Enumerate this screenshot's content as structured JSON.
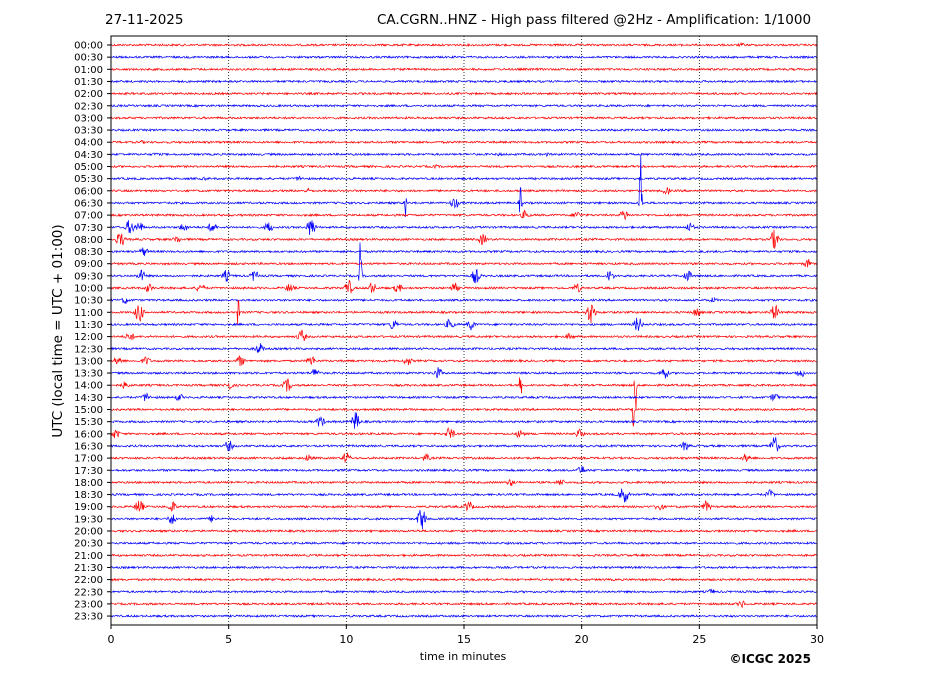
{
  "header": {
    "date": "27-11-2025",
    "station_title": "CA.CGRN..HNZ - High pass filtered @2Hz - Amplification: 1/1000"
  },
  "copyright": "©ICGC 2025",
  "colors": {
    "red": "#ff0000",
    "blue": "#0000ff",
    "grid": "#000000"
  },
  "chart_data": {
    "type": "line",
    "title": "CA.CGRN..HNZ - High pass filtered @2Hz - Amplification: 1/1000",
    "xlabel": "time in minutes",
    "ylabel": "UTC (local time = UTC + 01:00)",
    "xlim": [
      0,
      30
    ],
    "xticks": [
      0,
      5,
      10,
      15,
      20,
      25,
      30
    ],
    "vertical_gridlines_at": [
      5,
      10,
      15,
      20,
      25
    ],
    "grid_style": "dotted",
    "trace_colors_alternate": [
      "red",
      "blue"
    ],
    "rows": [
      "00:00",
      "00:30",
      "01:00",
      "01:30",
      "02:00",
      "02:30",
      "03:00",
      "03:30",
      "04:00",
      "04:30",
      "05:00",
      "05:30",
      "06:00",
      "06:30",
      "07:00",
      "07:30",
      "08:00",
      "08:30",
      "09:00",
      "09:30",
      "10:00",
      "10:30",
      "11:00",
      "11:30",
      "12:00",
      "12:30",
      "13:00",
      "13:30",
      "14:00",
      "14:30",
      "15:00",
      "15:30",
      "16:00",
      "16:30",
      "17:00",
      "17:30",
      "18:00",
      "18:30",
      "19:00",
      "19:30",
      "20:00",
      "20:30",
      "21:00",
      "21:30",
      "22:00",
      "22:30",
      "23:00",
      "23:30"
    ],
    "events": [
      {
        "row": 0,
        "t": 26.8,
        "amp": 2
      },
      {
        "row": 8,
        "t": 1.3,
        "amp": 2
      },
      {
        "row": 9,
        "t": 1.9,
        "amp": 2
      },
      {
        "row": 9,
        "t": 16.5,
        "amp": 2
      },
      {
        "row": 9,
        "t": 18.5,
        "amp": 2
      },
      {
        "row": 10,
        "t": 13.8,
        "amp": 2
      },
      {
        "row": 11,
        "t": 4.0,
        "amp": 2
      },
      {
        "row": 11,
        "t": 8.0,
        "amp": 3
      },
      {
        "row": 12,
        "t": 8.4,
        "amp": 3
      },
      {
        "row": 12,
        "t": 23.6,
        "amp": 4
      },
      {
        "row": 13,
        "t": 12.5,
        "amp": 20
      },
      {
        "row": 13,
        "t": 14.6,
        "amp": 6
      },
      {
        "row": 13,
        "t": 17.4,
        "amp": 18
      },
      {
        "row": 13,
        "t": 22.5,
        "amp": 70
      },
      {
        "row": 14,
        "t": 17.6,
        "amp": 5
      },
      {
        "row": 14,
        "t": 19.8,
        "amp": 4
      },
      {
        "row": 14,
        "t": 21.8,
        "amp": 6
      },
      {
        "row": 15,
        "t": 0.8,
        "amp": 8
      },
      {
        "row": 15,
        "t": 1.2,
        "amp": 6
      },
      {
        "row": 15,
        "t": 3.1,
        "amp": 5
      },
      {
        "row": 15,
        "t": 4.3,
        "amp": 6
      },
      {
        "row": 15,
        "t": 6.7,
        "amp": 6
      },
      {
        "row": 15,
        "t": 8.5,
        "amp": 10
      },
      {
        "row": 15,
        "t": 24.6,
        "amp": 5
      },
      {
        "row": 16,
        "t": 0.4,
        "amp": 8
      },
      {
        "row": 16,
        "t": 2.8,
        "amp": 4
      },
      {
        "row": 16,
        "t": 15.8,
        "amp": 6
      },
      {
        "row": 16,
        "t": 28.2,
        "amp": 10
      },
      {
        "row": 17,
        "t": 1.4,
        "amp": 5
      },
      {
        "row": 18,
        "t": 29.6,
        "amp": 5
      },
      {
        "row": 19,
        "t": 1.3,
        "amp": 6
      },
      {
        "row": 19,
        "t": 4.9,
        "amp": 6
      },
      {
        "row": 19,
        "t": 6.1,
        "amp": 6
      },
      {
        "row": 19,
        "t": 10.6,
        "amp": 40
      },
      {
        "row": 19,
        "t": 15.5,
        "amp": 8
      },
      {
        "row": 19,
        "t": 21.2,
        "amp": 6
      },
      {
        "row": 19,
        "t": 24.5,
        "amp": 6
      },
      {
        "row": 20,
        "t": 1.6,
        "amp": 5
      },
      {
        "row": 20,
        "t": 3.8,
        "amp": 5
      },
      {
        "row": 20,
        "t": 7.6,
        "amp": 5
      },
      {
        "row": 20,
        "t": 10.1,
        "amp": 8
      },
      {
        "row": 20,
        "t": 11.1,
        "amp": 6
      },
      {
        "row": 20,
        "t": 12.2,
        "amp": 5
      },
      {
        "row": 20,
        "t": 14.6,
        "amp": 5
      },
      {
        "row": 20,
        "t": 19.8,
        "amp": 5
      },
      {
        "row": 21,
        "t": 0.6,
        "amp": 4
      },
      {
        "row": 21,
        "t": 25.6,
        "amp": 3
      },
      {
        "row": 22,
        "t": 1.2,
        "amp": 10
      },
      {
        "row": 22,
        "t": 5.4,
        "amp": 16
      },
      {
        "row": 22,
        "t": 20.4,
        "amp": 12
      },
      {
        "row": 22,
        "t": 24.9,
        "amp": 5
      },
      {
        "row": 22,
        "t": 28.2,
        "amp": 8
      },
      {
        "row": 23,
        "t": 12.0,
        "amp": 6
      },
      {
        "row": 23,
        "t": 14.4,
        "amp": 6
      },
      {
        "row": 23,
        "t": 15.3,
        "amp": 6
      },
      {
        "row": 23,
        "t": 22.4,
        "amp": 8
      },
      {
        "row": 24,
        "t": 0.8,
        "amp": 5
      },
      {
        "row": 24,
        "t": 8.1,
        "amp": 7
      },
      {
        "row": 24,
        "t": 19.5,
        "amp": 4
      },
      {
        "row": 25,
        "t": 6.3,
        "amp": 6
      },
      {
        "row": 26,
        "t": 0.3,
        "amp": 5
      },
      {
        "row": 26,
        "t": 1.5,
        "amp": 5
      },
      {
        "row": 26,
        "t": 5.5,
        "amp": 6
      },
      {
        "row": 26,
        "t": 8.5,
        "amp": 6
      },
      {
        "row": 26,
        "t": 12.6,
        "amp": 5
      },
      {
        "row": 27,
        "t": 8.7,
        "amp": 6
      },
      {
        "row": 27,
        "t": 13.9,
        "amp": 6
      },
      {
        "row": 27,
        "t": 23.5,
        "amp": 7
      },
      {
        "row": 27,
        "t": 29.3,
        "amp": 5
      },
      {
        "row": 28,
        "t": 0.6,
        "amp": 4
      },
      {
        "row": 28,
        "t": 5.0,
        "amp": 5
      },
      {
        "row": 28,
        "t": 7.5,
        "amp": 7
      },
      {
        "row": 28,
        "t": 17.4,
        "amp": 16
      },
      {
        "row": 28,
        "t": 22.3,
        "amp": 30
      },
      {
        "row": 29,
        "t": 1.5,
        "amp": 5
      },
      {
        "row": 29,
        "t": 2.9,
        "amp": 4
      },
      {
        "row": 29,
        "t": 28.2,
        "amp": 5
      },
      {
        "row": 30,
        "t": 22.2,
        "amp": 20
      },
      {
        "row": 31,
        "t": 8.9,
        "amp": 6
      },
      {
        "row": 31,
        "t": 10.4,
        "amp": 10
      },
      {
        "row": 32,
        "t": 0.2,
        "amp": 5
      },
      {
        "row": 32,
        "t": 14.4,
        "amp": 7
      },
      {
        "row": 32,
        "t": 17.4,
        "amp": 5
      },
      {
        "row": 32,
        "t": 19.9,
        "amp": 5
      },
      {
        "row": 33,
        "t": 5.0,
        "amp": 6
      },
      {
        "row": 33,
        "t": 24.4,
        "amp": 5
      },
      {
        "row": 33,
        "t": 28.2,
        "amp": 10
      },
      {
        "row": 34,
        "t": 8.4,
        "amp": 4
      },
      {
        "row": 34,
        "t": 10.0,
        "amp": 6
      },
      {
        "row": 34,
        "t": 13.4,
        "amp": 4
      },
      {
        "row": 34,
        "t": 27.0,
        "amp": 5
      },
      {
        "row": 35,
        "t": 20.0,
        "amp": 5
      },
      {
        "row": 36,
        "t": 17.0,
        "amp": 4
      },
      {
        "row": 36,
        "t": 19.1,
        "amp": 4
      },
      {
        "row": 37,
        "t": 21.8,
        "amp": 10
      },
      {
        "row": 37,
        "t": 28.0,
        "amp": 5
      },
      {
        "row": 38,
        "t": 1.2,
        "amp": 8
      },
      {
        "row": 38,
        "t": 2.6,
        "amp": 6
      },
      {
        "row": 38,
        "t": 15.2,
        "amp": 6
      },
      {
        "row": 38,
        "t": 23.3,
        "amp": 5
      },
      {
        "row": 38,
        "t": 25.3,
        "amp": 6
      },
      {
        "row": 39,
        "t": 2.6,
        "amp": 6
      },
      {
        "row": 39,
        "t": 4.3,
        "amp": 4
      },
      {
        "row": 39,
        "t": 13.2,
        "amp": 12
      },
      {
        "row": 45,
        "t": 25.5,
        "amp": 3
      },
      {
        "row": 46,
        "t": 26.8,
        "amp": 4
      }
    ]
  }
}
